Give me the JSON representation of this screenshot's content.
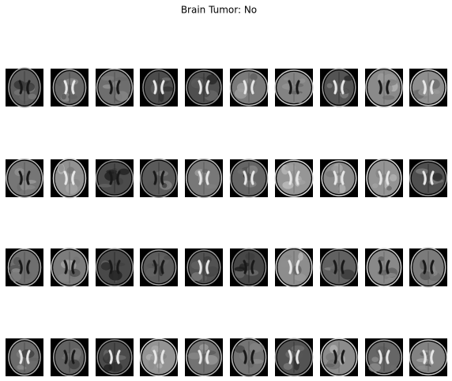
{
  "title": "Brain Tumor: No"
}
